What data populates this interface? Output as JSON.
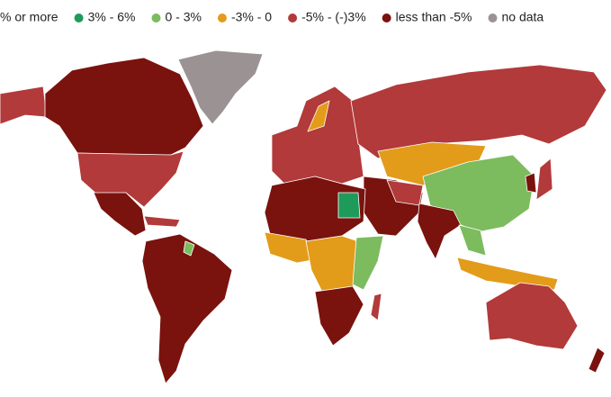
{
  "legend": [
    {
      "label": "% or more",
      "color": "#0b6b3a"
    },
    {
      "label": "3% - 6%",
      "color": "#1e9a5a"
    },
    {
      "label": "0 - 3%",
      "color": "#7cbb5e"
    },
    {
      "label": "-3% - 0",
      "color": "#e39b1a"
    },
    {
      "label": "-5% - (-)3%",
      "color": "#b23a3a"
    },
    {
      "label": "less than -5%",
      "color": "#7a120e"
    },
    {
      "label": "no data",
      "color": "#9b9393"
    }
  ]
}
